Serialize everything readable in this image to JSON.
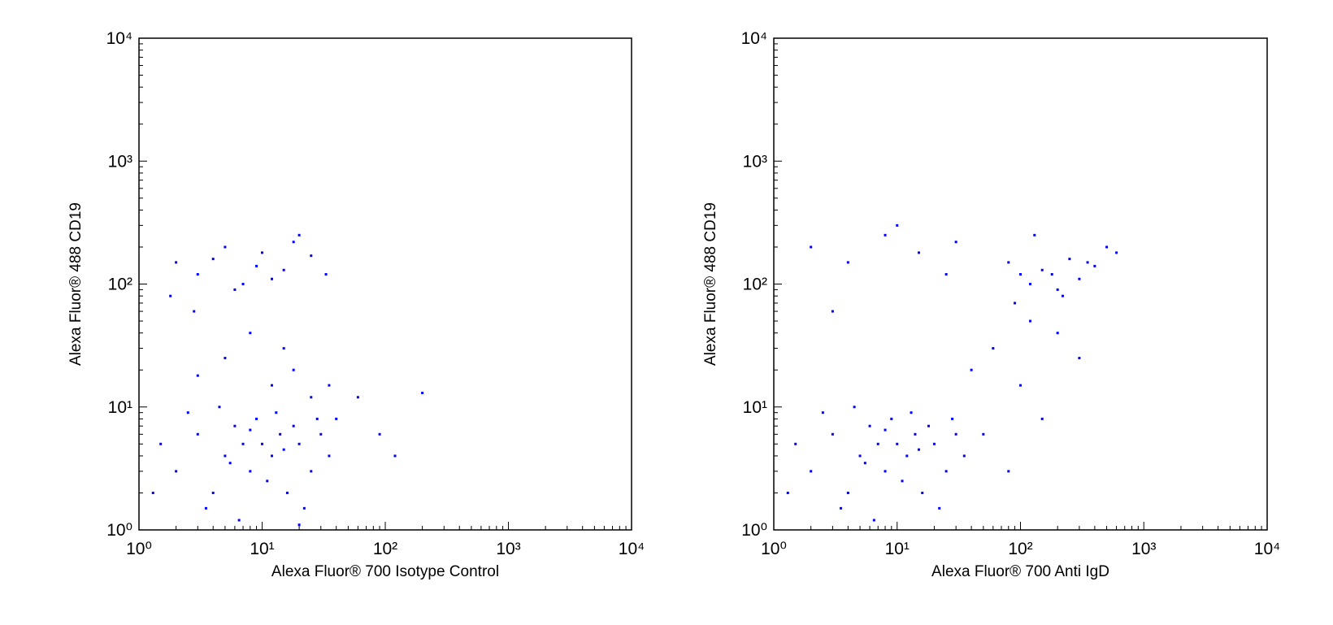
{
  "chart_data": [
    {
      "type": "scatter",
      "x_label": "Alexa Fluor® 700 Isotype Control",
      "y_label": "Alexa Fluor® 488 CD19",
      "xscale": "log",
      "yscale": "log",
      "grid": false,
      "color": "#0000ff",
      "xlim": [
        1,
        10000
      ],
      "ylim": [
        1,
        10000
      ],
      "xticks": [
        {
          "value": 1,
          "label": "10⁰"
        },
        {
          "value": 10,
          "label": "10¹"
        },
        {
          "value": 100,
          "label": "10²"
        },
        {
          "value": 1000,
          "label": "10³"
        },
        {
          "value": 10000,
          "label": "10⁴"
        }
      ],
      "yticks": [
        {
          "value": 1,
          "label": "10⁰"
        },
        {
          "value": 10,
          "label": "10¹"
        },
        {
          "value": 100,
          "label": "10²"
        },
        {
          "value": 1000,
          "label": "10³"
        },
        {
          "value": 10000,
          "label": "10⁴"
        }
      ],
      "x": [
        1.5,
        2,
        3,
        4,
        5,
        6,
        7,
        8,
        9,
        10,
        12,
        14,
        16,
        18,
        20,
        25,
        30,
        35,
        1.3,
        2.5,
        3.5,
        4.5,
        5.5,
        6.5,
        8,
        11,
        13,
        15,
        22,
        28,
        2,
        3,
        5,
        7,
        10,
        15,
        20,
        1.8,
        2.8,
        4,
        6,
        9,
        12,
        18,
        25,
        33,
        40,
        60,
        90,
        120,
        200,
        3,
        5,
        8,
        12,
        18,
        25,
        35,
        15,
        20
      ],
      "y": [
        5,
        3,
        6,
        2,
        4,
        7,
        5,
        3,
        8,
        5,
        4,
        6,
        2,
        7,
        5,
        3,
        6,
        4,
        2,
        9,
        1.5,
        10,
        3.5,
        1.2,
        6.5,
        2.5,
        9,
        4.5,
        1.5,
        8,
        150,
        120,
        200,
        100,
        180,
        130,
        250,
        80,
        60,
        160,
        90,
        140,
        110,
        220,
        170,
        120,
        8,
        12,
        6,
        4,
        13,
        18,
        25,
        40,
        15,
        20,
        12,
        15,
        30,
        1.1
      ]
    },
    {
      "type": "scatter",
      "x_label": "Alexa Fluor® 700 Anti IgD",
      "y_label": "Alexa Fluor® 488 CD19",
      "xscale": "log",
      "yscale": "log",
      "grid": false,
      "color": "#0000ff",
      "xlim": [
        1,
        10000
      ],
      "ylim": [
        1,
        10000
      ],
      "xticks": [
        {
          "value": 1,
          "label": "10⁰"
        },
        {
          "value": 10,
          "label": "10¹"
        },
        {
          "value": 100,
          "label": "10²"
        },
        {
          "value": 1000,
          "label": "10³"
        },
        {
          "value": 10000,
          "label": "10⁴"
        }
      ],
      "yticks": [
        {
          "value": 1,
          "label": "10⁰"
        },
        {
          "value": 10,
          "label": "10¹"
        },
        {
          "value": 100,
          "label": "10²"
        },
        {
          "value": 1000,
          "label": "10³"
        },
        {
          "value": 10000,
          "label": "10⁴"
        }
      ],
      "x": [
        1.5,
        2,
        3,
        4,
        5,
        6,
        7,
        8,
        9,
        10,
        12,
        14,
        16,
        18,
        20,
        25,
        30,
        35,
        1.3,
        2.5,
        3.5,
        4.5,
        5.5,
        6.5,
        8,
        11,
        13,
        15,
        22,
        28,
        80,
        100,
        120,
        150,
        200,
        250,
        300,
        400,
        500,
        600,
        90,
        130,
        180,
        220,
        350,
        2,
        4,
        8,
        15,
        25,
        3,
        10,
        30,
        40,
        60,
        100,
        150,
        200,
        300,
        50,
        80,
        120
      ],
      "y": [
        5,
        3,
        6,
        2,
        4,
        7,
        5,
        3,
        8,
        5,
        4,
        6,
        2,
        7,
        5,
        3,
        6,
        4,
        2,
        9,
        1.5,
        10,
        3.5,
        1.2,
        6.5,
        2.5,
        9,
        4.5,
        1.5,
        8,
        150,
        120,
        100,
        130,
        90,
        160,
        110,
        140,
        200,
        180,
        70,
        250,
        120,
        80,
        150,
        200,
        150,
        250,
        180,
        120,
        60,
        300,
        220,
        20,
        30,
        15,
        8,
        40,
        25,
        6,
        3,
        50
      ]
    }
  ]
}
